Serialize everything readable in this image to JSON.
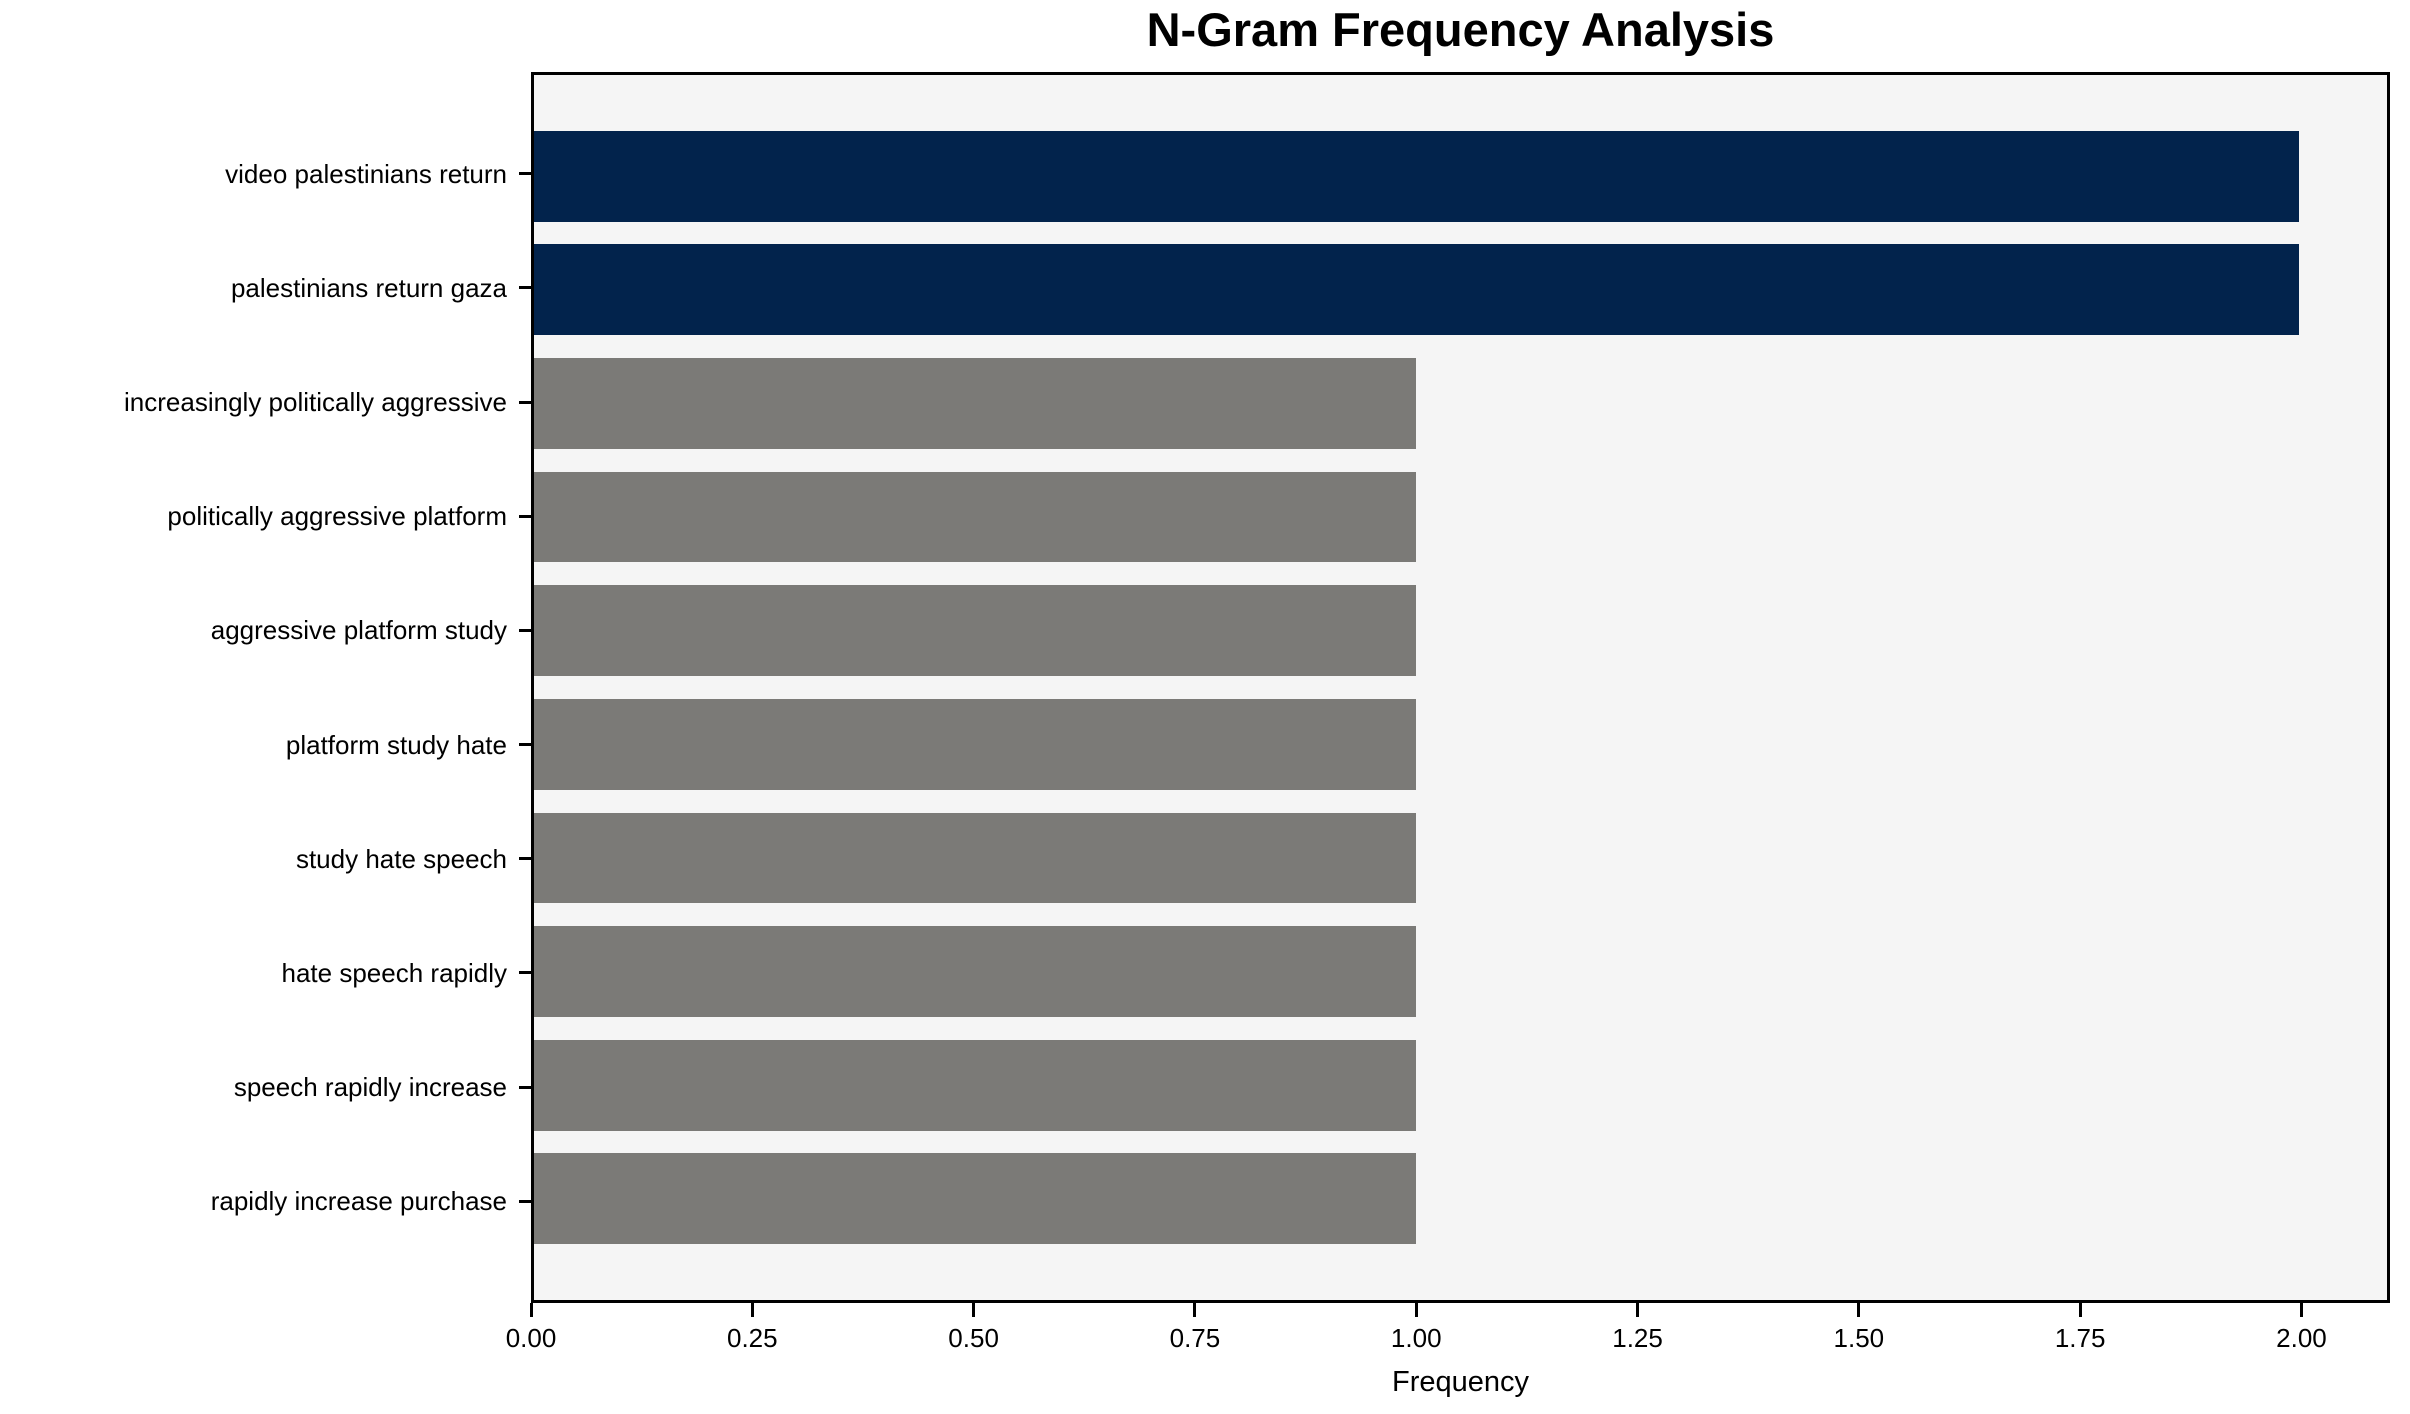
{
  "chart_data": {
    "type": "bar",
    "orientation": "horizontal",
    "title": "N-Gram Frequency Analysis",
    "xlabel": "Frequency",
    "ylabel": "",
    "categories": [
      "video palestinians return",
      "palestinians return gaza",
      "increasingly politically aggressive",
      "politically aggressive platform",
      "aggressive platform study",
      "platform study hate",
      "study hate speech",
      "hate speech rapidly",
      "speech rapidly increase",
      "rapidly increase purchase"
    ],
    "values": [
      2,
      2,
      1,
      1,
      1,
      1,
      1,
      1,
      1,
      1
    ],
    "bar_colors": [
      "#02234c",
      "#02234c",
      "#7b7a77",
      "#7b7a77",
      "#7b7a77",
      "#7b7a77",
      "#7b7a77",
      "#7b7a77",
      "#7b7a77",
      "#7b7a77"
    ],
    "xlim": [
      0,
      2.1
    ],
    "x_ticks": [
      0,
      0.25,
      0.5,
      0.75,
      1.0,
      1.25,
      1.5,
      1.75,
      2.0
    ],
    "x_tick_labels": [
      "0.00",
      "0.25",
      "0.50",
      "0.75",
      "1.00",
      "1.25",
      "1.50",
      "1.75",
      "2.00"
    ],
    "grid": false,
    "legend": null,
    "colors": {
      "highlight": "#02234c",
      "default": "#7b7a77",
      "plot_background": "#f5f5f5",
      "figure_background": "#ffffff",
      "axis": "#000000"
    }
  }
}
